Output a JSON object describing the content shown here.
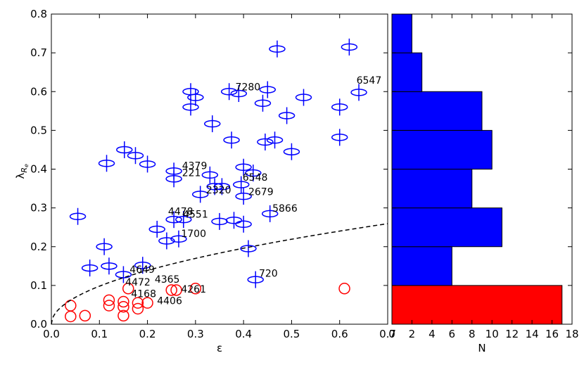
{
  "chart_data": [
    {
      "type": "scatter",
      "xlabel": "ε",
      "ylabel_main": "λ",
      "ylabel_sub": "R",
      "ylabel_subsub": "e",
      "xlim": [
        0,
        0.7
      ],
      "ylim": [
        0,
        0.8
      ],
      "xticks": [
        "0.0",
        "0.1",
        "0.2",
        "0.3",
        "0.4",
        "0.5",
        "0.6",
        "0.7"
      ],
      "yticks": [
        "0.0",
        "0.1",
        "0.2",
        "0.3",
        "0.4",
        "0.5",
        "0.6",
        "0.7",
        "0.8"
      ],
      "fast_color": "#0000ff",
      "slow_color": "#ff0000",
      "dashed_curve": {
        "style": "dashed",
        "formula": "0.31*sqrt(eps)"
      },
      "fast_rotators": [
        {
          "x": 0.055,
          "y": 0.278
        },
        {
          "x": 0.08,
          "y": 0.145
        },
        {
          "x": 0.11,
          "y": 0.2
        },
        {
          "x": 0.115,
          "y": 0.415
        },
        {
          "x": 0.12,
          "y": 0.15
        },
        {
          "x": 0.15,
          "y": 0.128
        },
        {
          "x": 0.152,
          "y": 0.45
        },
        {
          "x": 0.175,
          "y": 0.435
        },
        {
          "x": 0.19,
          "y": 0.152
        },
        {
          "x": 0.2,
          "y": 0.413
        },
        {
          "x": 0.22,
          "y": 0.245
        },
        {
          "x": 0.24,
          "y": 0.215
        },
        {
          "x": 0.255,
          "y": 0.395
        },
        {
          "x": 0.255,
          "y": 0.375
        },
        {
          "x": 0.255,
          "y": 0.27
        },
        {
          "x": 0.265,
          "y": 0.22
        },
        {
          "x": 0.275,
          "y": 0.27
        },
        {
          "x": 0.29,
          "y": 0.6
        },
        {
          "x": 0.29,
          "y": 0.56
        },
        {
          "x": 0.3,
          "y": 0.585
        },
        {
          "x": 0.31,
          "y": 0.335
        },
        {
          "x": 0.33,
          "y": 0.385
        },
        {
          "x": 0.335,
          "y": 0.517
        },
        {
          "x": 0.34,
          "y": 0.355
        },
        {
          "x": 0.35,
          "y": 0.265
        },
        {
          "x": 0.355,
          "y": 0.355
        },
        {
          "x": 0.37,
          "y": 0.6
        },
        {
          "x": 0.375,
          "y": 0.475
        },
        {
          "x": 0.38,
          "y": 0.268
        },
        {
          "x": 0.39,
          "y": 0.595
        },
        {
          "x": 0.395,
          "y": 0.36
        },
        {
          "x": 0.4,
          "y": 0.405
        },
        {
          "x": 0.4,
          "y": 0.33
        },
        {
          "x": 0.4,
          "y": 0.258
        },
        {
          "x": 0.41,
          "y": 0.195
        },
        {
          "x": 0.42,
          "y": 0.39
        },
        {
          "x": 0.425,
          "y": 0.115
        },
        {
          "x": 0.44,
          "y": 0.57
        },
        {
          "x": 0.445,
          "y": 0.47
        },
        {
          "x": 0.45,
          "y": 0.605
        },
        {
          "x": 0.455,
          "y": 0.285
        },
        {
          "x": 0.465,
          "y": 0.475
        },
        {
          "x": 0.47,
          "y": 0.71
        },
        {
          "x": 0.49,
          "y": 0.538
        },
        {
          "x": 0.5,
          "y": 0.445
        },
        {
          "x": 0.525,
          "y": 0.585
        },
        {
          "x": 0.6,
          "y": 0.56
        },
        {
          "x": 0.6,
          "y": 0.482
        },
        {
          "x": 0.62,
          "y": 0.715
        },
        {
          "x": 0.64,
          "y": 0.598
        }
      ],
      "slow_rotators": [
        {
          "x": 0.04,
          "y": 0.048
        },
        {
          "x": 0.04,
          "y": 0.02
        },
        {
          "x": 0.07,
          "y": 0.022
        },
        {
          "x": 0.12,
          "y": 0.062
        },
        {
          "x": 0.12,
          "y": 0.048
        },
        {
          "x": 0.15,
          "y": 0.058
        },
        {
          "x": 0.15,
          "y": 0.045
        },
        {
          "x": 0.15,
          "y": 0.022
        },
        {
          "x": 0.16,
          "y": 0.092
        },
        {
          "x": 0.18,
          "y": 0.055
        },
        {
          "x": 0.18,
          "y": 0.04
        },
        {
          "x": 0.2,
          "y": 0.055
        },
        {
          "x": 0.25,
          "y": 0.088
        },
        {
          "x": 0.26,
          "y": 0.088
        },
        {
          "x": 0.3,
          "y": 0.092
        },
        {
          "x": 0.61,
          "y": 0.092
        }
      ],
      "annotations": [
        {
          "text": "7280",
          "x": 0.383,
          "y": 0.603
        },
        {
          "text": "6547",
          "x": 0.635,
          "y": 0.62
        },
        {
          "text": "4379",
          "x": 0.272,
          "y": 0.4
        },
        {
          "text": "221",
          "x": 0.272,
          "y": 0.382
        },
        {
          "text": "6548",
          "x": 0.398,
          "y": 0.37
        },
        {
          "text": "2320",
          "x": 0.322,
          "y": 0.337
        },
        {
          "text": "2679",
          "x": 0.41,
          "y": 0.333
        },
        {
          "text": "5866",
          "x": 0.46,
          "y": 0.29
        },
        {
          "text": "4478",
          "x": 0.243,
          "y": 0.282
        },
        {
          "text": "4551",
          "x": 0.274,
          "y": 0.275
        },
        {
          "text": "1700",
          "x": 0.27,
          "y": 0.225
        },
        {
          "text": "4649",
          "x": 0.163,
          "y": 0.132
        },
        {
          "text": "720",
          "x": 0.432,
          "y": 0.122
        },
        {
          "text": "4472",
          "x": 0.154,
          "y": 0.1
        },
        {
          "text": "4365",
          "x": 0.215,
          "y": 0.107
        },
        {
          "text": "4168",
          "x": 0.166,
          "y": 0.07
        },
        {
          "text": "4261",
          "x": 0.27,
          "y": 0.082
        },
        {
          "text": "4406",
          "x": 0.22,
          "y": 0.052
        }
      ]
    },
    {
      "type": "bar",
      "orientation": "horizontal",
      "xlabel": "N",
      "xlim": [
        0,
        18
      ],
      "xticks": [
        "0",
        "2",
        "4",
        "6",
        "8",
        "10",
        "12",
        "14",
        "16",
        "18"
      ],
      "bins": [
        {
          "y0": 0.0,
          "y1": 0.1,
          "count": 17,
          "group": "slow"
        },
        {
          "y0": 0.1,
          "y1": 0.2,
          "count": 6,
          "group": "fast"
        },
        {
          "y0": 0.2,
          "y1": 0.3,
          "count": 11,
          "group": "fast"
        },
        {
          "y0": 0.3,
          "y1": 0.4,
          "count": 8,
          "group": "fast"
        },
        {
          "y0": 0.4,
          "y1": 0.5,
          "count": 10,
          "group": "fast"
        },
        {
          "y0": 0.5,
          "y1": 0.6,
          "count": 9,
          "group": "fast"
        },
        {
          "y0": 0.6,
          "y1": 0.7,
          "count": 3,
          "group": "fast"
        },
        {
          "y0": 0.7,
          "y1": 0.8,
          "count": 2,
          "group": "fast"
        }
      ]
    }
  ]
}
